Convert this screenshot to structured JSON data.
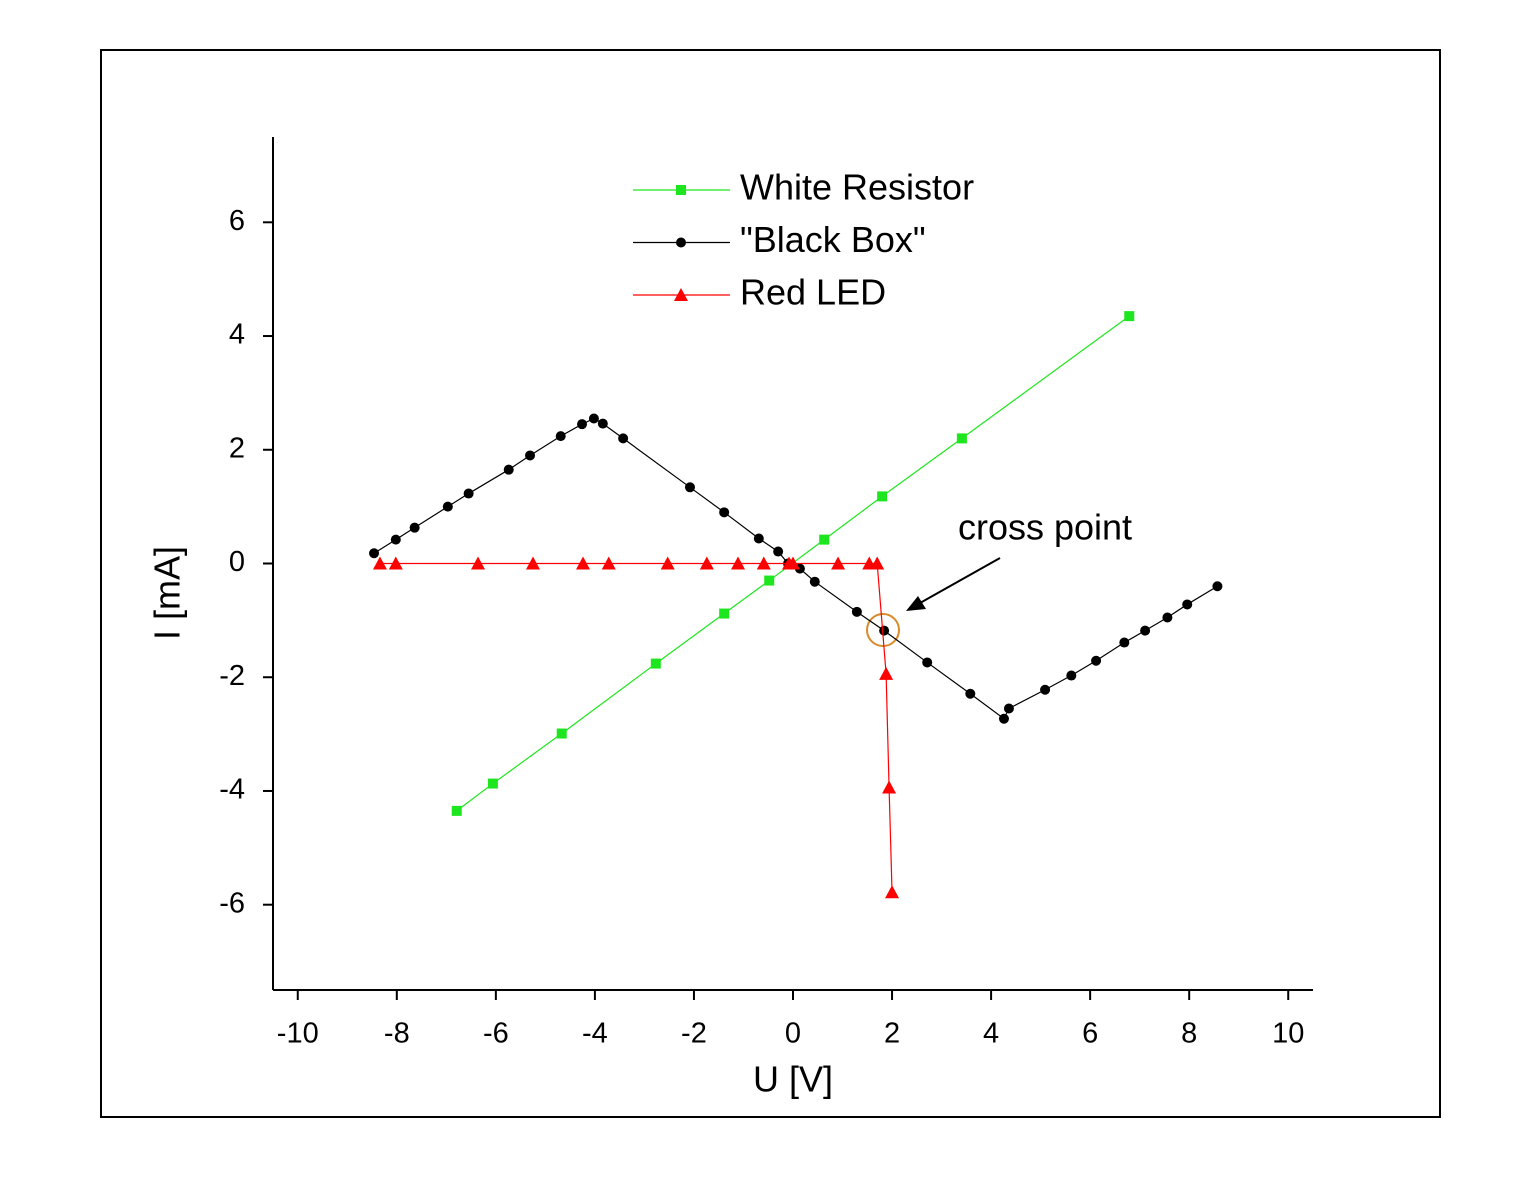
{
  "chart_data": {
    "type": "line",
    "xlabel": "U [V]",
    "ylabel": "I [mA]",
    "xlim": [
      -10.5,
      10.5
    ],
    "xticks": [
      -10,
      -8,
      -6,
      -4,
      -2,
      0,
      2,
      4,
      6,
      8,
      10
    ],
    "ylim": [
      -7.5,
      7.5
    ],
    "yticks": [
      -6,
      -4,
      -2,
      0,
      2,
      4,
      6
    ],
    "annotations": [
      "cross point"
    ],
    "series": [
      {
        "name": "White Resistor",
        "color": "#1ee61e",
        "marker": "square",
        "x": [
          -6.79,
          -6.06,
          -4.67,
          -2.77,
          -1.39,
          -0.48,
          0.63,
          1.8,
          3.41,
          6.79
        ],
        "values": [
          -4.35,
          -3.87,
          -2.99,
          -1.76,
          -0.88,
          -0.3,
          0.42,
          1.18,
          2.2,
          4.35
        ]
      },
      {
        "name": "\"Black Box\"",
        "color": "#000000",
        "marker": "circle",
        "x": [
          -8.46,
          -8.02,
          -7.64,
          -6.97,
          -6.55,
          -5.74,
          -5.31,
          -4.69,
          -4.26,
          -4.02,
          -3.84,
          -3.43,
          -2.08,
          -1.39,
          -0.69,
          -0.3,
          -0.1,
          0.14,
          0.44,
          1.29,
          1.84,
          2.71,
          3.58,
          4.26,
          4.36,
          5.09,
          5.62,
          6.12,
          6.69,
          7.11,
          7.56,
          7.96,
          8.57
        ],
        "values": [
          0.18,
          0.42,
          0.63,
          1.0,
          1.23,
          1.65,
          1.9,
          2.24,
          2.45,
          2.55,
          2.46,
          2.2,
          1.34,
          0.9,
          0.44,
          0.21,
          0.0,
          -0.09,
          -0.32,
          -0.85,
          -1.18,
          -1.74,
          -2.29,
          -2.73,
          -2.55,
          -2.22,
          -1.97,
          -1.71,
          -1.39,
          -1.18,
          -0.95,
          -0.72,
          -0.4
        ]
      },
      {
        "name": "Red LED",
        "color": "#ff0000",
        "marker": "triangle",
        "x": [
          -8.34,
          -8.02,
          -6.36,
          -5.25,
          -4.24,
          -3.72,
          -2.53,
          -1.74,
          -1.11,
          -0.59,
          -0.08,
          0,
          0.91,
          1.54,
          1.7,
          1.88,
          1.94,
          2.0
        ],
        "values": [
          0,
          0,
          0,
          0,
          0,
          0,
          0,
          0,
          0,
          0,
          0,
          0,
          0,
          0,
          0,
          -1.94,
          -3.94,
          -5.78
        ]
      }
    ]
  }
}
